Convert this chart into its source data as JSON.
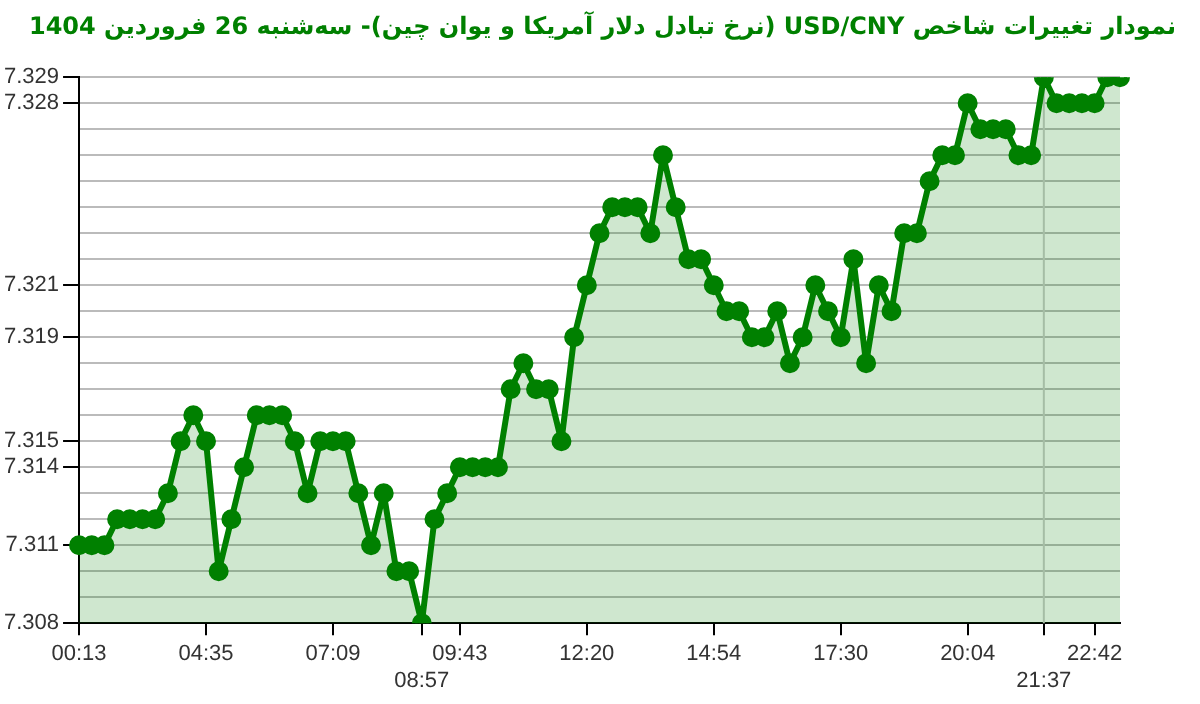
{
  "chart_data": {
    "type": "area",
    "title": "نمودار تغییرات شاخص USD/CNY (نرخ تبادل دلار آمریکا و یوان چین)- سه‌شنبه  26 فروردین 1404",
    "categories": [
      "00:13",
      null,
      null,
      null,
      null,
      null,
      null,
      null,
      null,
      null,
      "04:35",
      null,
      null,
      null,
      null,
      null,
      null,
      null,
      null,
      null,
      "07:09",
      null,
      null,
      null,
      null,
      null,
      null,
      "08:57",
      null,
      null,
      "09:43",
      null,
      null,
      null,
      null,
      null,
      null,
      null,
      null,
      null,
      "12:20",
      null,
      null,
      null,
      null,
      null,
      null,
      null,
      null,
      null,
      "14:54",
      null,
      null,
      null,
      null,
      null,
      null,
      null,
      null,
      null,
      "17:30",
      null,
      null,
      null,
      null,
      null,
      null,
      null,
      null,
      null,
      "20:04",
      null,
      null,
      null,
      null,
      null,
      "21:37",
      null,
      null,
      null,
      "22:42",
      null,
      null
    ],
    "series": [
      {
        "color": "#008000",
        "values": [
          7.311,
          7.311,
          7.311,
          7.312,
          7.312,
          7.312,
          7.312,
          7.313,
          7.315,
          7.316,
          7.315,
          7.31,
          7.312,
          7.314,
          7.316,
          7.316,
          7.316,
          7.315,
          7.313,
          7.315,
          7.315,
          7.315,
          7.313,
          7.311,
          7.313,
          7.31,
          7.31,
          7.308,
          7.312,
          7.313,
          7.314,
          7.314,
          7.314,
          7.314,
          7.317,
          7.318,
          7.317,
          7.317,
          7.315,
          7.319,
          7.321,
          7.323,
          7.324,
          7.324,
          7.324,
          7.323,
          7.326,
          7.324,
          7.322,
          7.322,
          7.321,
          7.32,
          7.32,
          7.319,
          7.319,
          7.32,
          7.318,
          7.319,
          7.321,
          7.32,
          7.319,
          7.322,
          7.318,
          7.321,
          7.32,
          7.323,
          7.323,
          7.325,
          7.326,
          7.326,
          7.328,
          7.327,
          7.327,
          7.327,
          7.326,
          7.326,
          7.329,
          7.328,
          7.328,
          7.328,
          7.328,
          7.329,
          7.329
        ]
      }
    ],
    "ylim": [
      7.308,
      7.329
    ],
    "yticks": [
      7.308,
      {
        "value": 7.309,
        "label": null
      },
      {
        "value": 7.31,
        "label": null
      },
      7.311,
      {
        "value": 7.312,
        "label": null
      },
      {
        "value": 7.313,
        "label": null
      },
      7.314,
      7.315,
      {
        "value": 7.316,
        "label": null
      },
      {
        "value": 7.317,
        "label": null
      },
      {
        "value": 7.318,
        "label": null
      },
      7.319,
      {
        "value": 7.32,
        "label": null
      },
      7.321,
      {
        "value": 7.322,
        "label": null
      },
      {
        "value": 7.323,
        "label": null
      },
      {
        "value": 7.324,
        "label": null
      },
      {
        "value": 7.325,
        "label": null
      },
      {
        "value": 7.326,
        "label": null
      },
      {
        "value": 7.327,
        "label": null
      },
      7.328,
      7.329
    ],
    "ref_lines": [
      {
        "axis": "x",
        "value": "21:37",
        "color": "#cccccc"
      }
    ],
    "grid": "y",
    "marker": "circle",
    "line_style": "solid",
    "legend": false
  }
}
